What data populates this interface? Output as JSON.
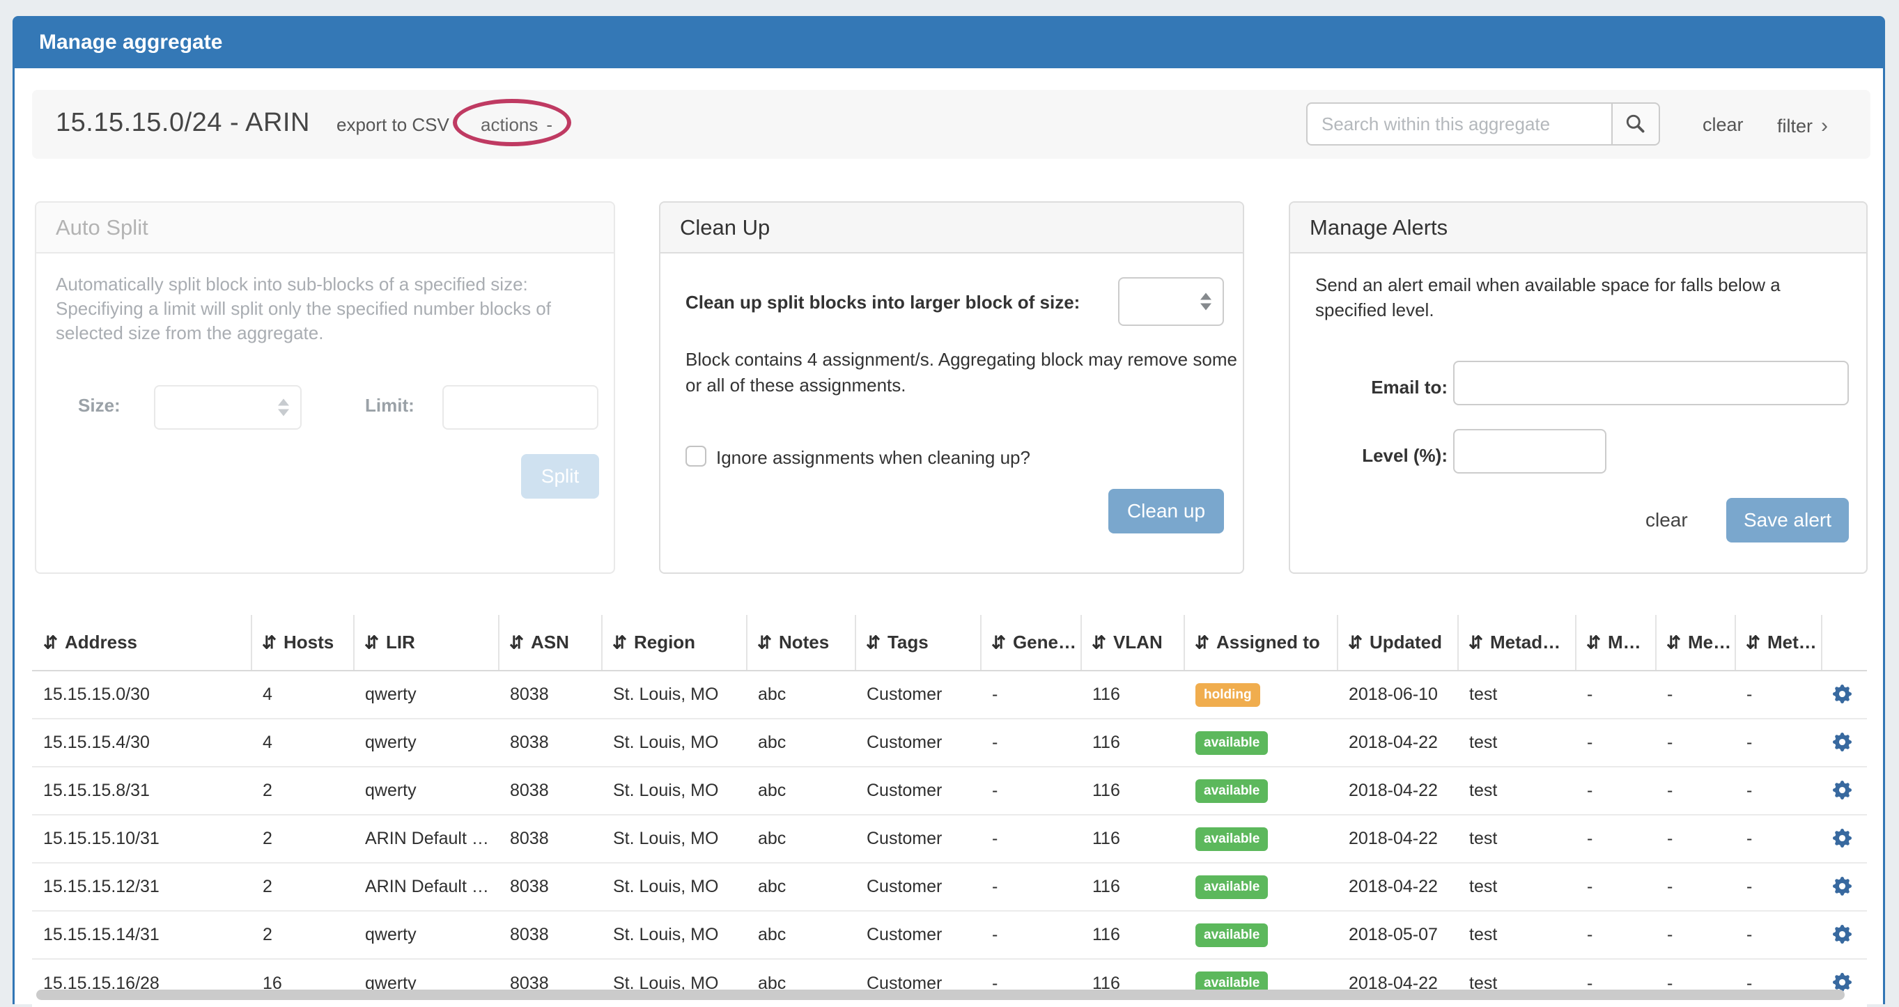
{
  "header": {
    "title": "Manage aggregate"
  },
  "toolbar": {
    "aggregate_title": "15.15.15.0/24 - ARIN",
    "export_csv_label": "export to CSV",
    "actions_label": "actions",
    "actions_caret": "-",
    "search_placeholder": "Search within this aggregate",
    "search_icon": "magnifier",
    "clear_label": "clear",
    "filter_label": "filter",
    "filter_chevron": "›"
  },
  "auto_split": {
    "title": "Auto Split",
    "description": "Automatically split block into sub-blocks of a specified size: Specifiying a limit will split only the specified number blocks of selected size from the aggregate.",
    "size_label": "Size:",
    "limit_label": "Limit:",
    "size_value": "",
    "limit_value": "",
    "split_button": "Split",
    "enabled": false
  },
  "clean_up": {
    "title": "Clean Up",
    "size_label": "Clean up split blocks into larger block of size:",
    "size_value": "",
    "note": "Block contains 4 assignment/s. Aggregating block may remove some or all of these assignments.",
    "checkbox_label": "Ignore assignments when cleaning up?",
    "checkbox_checked": false,
    "button": "Clean up"
  },
  "manage_alerts": {
    "title": "Manage Alerts",
    "description": "Send an alert email when available space for falls below a specified level.",
    "email_label": "Email to:",
    "email_value": "",
    "level_label": "Level (%):",
    "level_value": "",
    "clear_label": "clear",
    "save_button": "Save alert"
  },
  "table": {
    "sort_icon": "⇵",
    "columns": [
      "Address",
      "Hosts",
      "LIR",
      "ASN",
      "Region",
      "Notes",
      "Tags",
      "Gene…",
      "VLAN",
      "Assigned to",
      "Updated",
      "Metad…",
      "M…",
      "Me…",
      "Met…"
    ],
    "status_colors": {
      "holding": "#f0ad4e",
      "available": "#5cb85c"
    },
    "rows": [
      {
        "address": "15.15.15.0/30",
        "hosts": "4",
        "lir": "qwerty",
        "asn": "8038",
        "region": "St. Louis, MO",
        "notes": "abc",
        "tags": "Customer",
        "gene": "-",
        "vlan": "116",
        "assigned_to": "holding",
        "updated": "2018-06-10",
        "metad": "test",
        "m": "-",
        "me": "-",
        "met": "-"
      },
      {
        "address": "15.15.15.4/30",
        "hosts": "4",
        "lir": "qwerty",
        "asn": "8038",
        "region": "St. Louis, MO",
        "notes": "abc",
        "tags": "Customer",
        "gene": "-",
        "vlan": "116",
        "assigned_to": "available",
        "updated": "2018-04-22",
        "metad": "test",
        "m": "-",
        "me": "-",
        "met": "-"
      },
      {
        "address": "15.15.15.8/31",
        "hosts": "2",
        "lir": "qwerty",
        "asn": "8038",
        "region": "St. Louis, MO",
        "notes": "abc",
        "tags": "Customer",
        "gene": "-",
        "vlan": "116",
        "assigned_to": "available",
        "updated": "2018-04-22",
        "metad": "test",
        "m": "-",
        "me": "-",
        "met": "-"
      },
      {
        "address": "15.15.15.10/31",
        "hosts": "2",
        "lir": "ARIN Default …",
        "asn": "8038",
        "region": "St. Louis, MO",
        "notes": "abc",
        "tags": "Customer",
        "gene": "-",
        "vlan": "116",
        "assigned_to": "available",
        "updated": "2018-04-22",
        "metad": "test",
        "m": "-",
        "me": "-",
        "met": "-"
      },
      {
        "address": "15.15.15.12/31",
        "hosts": "2",
        "lir": "ARIN Default …",
        "asn": "8038",
        "region": "St. Louis, MO",
        "notes": "abc",
        "tags": "Customer",
        "gene": "-",
        "vlan": "116",
        "assigned_to": "available",
        "updated": "2018-04-22",
        "metad": "test",
        "m": "-",
        "me": "-",
        "met": "-"
      },
      {
        "address": "15.15.15.14/31",
        "hosts": "2",
        "lir": "qwerty",
        "asn": "8038",
        "region": "St. Louis, MO",
        "notes": "abc",
        "tags": "Customer",
        "gene": "-",
        "vlan": "116",
        "assigned_to": "available",
        "updated": "2018-05-07",
        "metad": "test",
        "m": "-",
        "me": "-",
        "met": "-"
      },
      {
        "address": "15.15.15.16/28",
        "hosts": "16",
        "lir": "qwerty",
        "asn": "8038",
        "region": "St. Louis, MO",
        "notes": "abc",
        "tags": "Customer",
        "gene": "-",
        "vlan": "116",
        "assigned_to": "available",
        "updated": "2018-04-22",
        "metad": "test",
        "m": "-",
        "me": "-",
        "met": "-"
      }
    ]
  },
  "colors": {
    "header_bar": "#3478b6",
    "panel_border": "#3176b5",
    "primary_button": "#7aa7cd",
    "disabled_button": "#cfe1f0",
    "annotation_circle": "#bf3a62",
    "status_holding": "#f0ad4e",
    "status_available": "#5cb85c",
    "gear_icon": "#38699f"
  }
}
